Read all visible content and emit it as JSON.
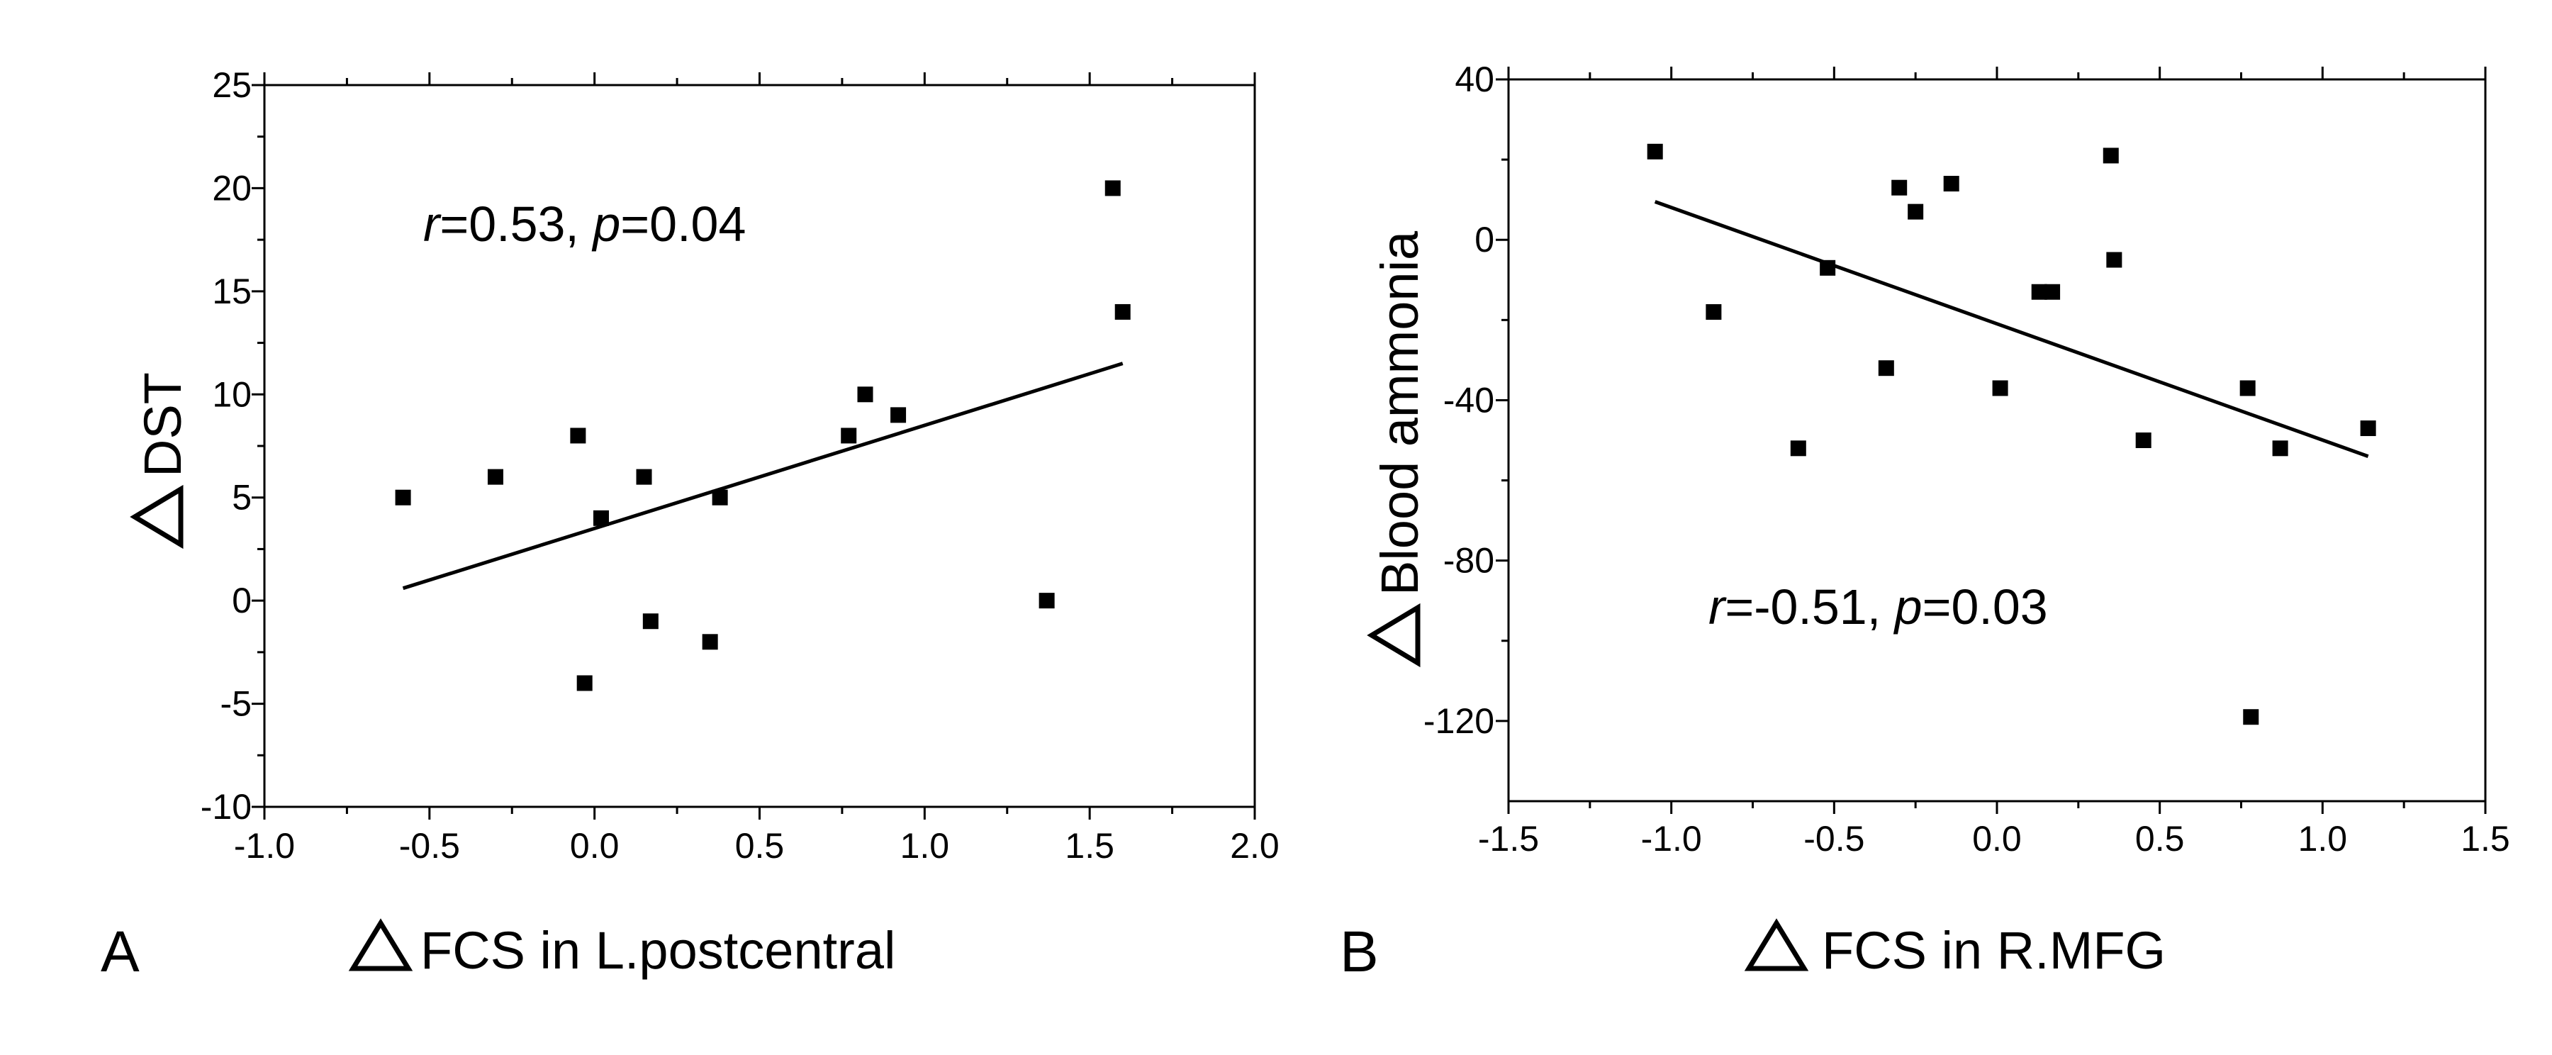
{
  "chart_data": [
    {
      "type": "scatter",
      "panel_label": "A",
      "xlabel": "FCS in L.postcentral",
      "ylabel": "DST",
      "xlim": [
        -1.0,
        2.0
      ],
      "ylim": [
        -10,
        25
      ],
      "xticks": [
        "-1.0",
        "-0.5",
        "0.0",
        "0.5",
        "1.0",
        "1.5",
        "2.0"
      ],
      "yticks": [
        "-10",
        "-5",
        "0",
        "5",
        "10",
        "15",
        "20",
        "25"
      ],
      "annotation": {
        "r_label": "r",
        "r_value": "=0.53, ",
        "p_label": "p",
        "p_value": "=0.04"
      },
      "points": [
        {
          "x": -0.58,
          "y": 5
        },
        {
          "x": -0.3,
          "y": 6
        },
        {
          "x": -0.05,
          "y": 8
        },
        {
          "x": -0.03,
          "y": -4
        },
        {
          "x": 0.02,
          "y": 4
        },
        {
          "x": 0.15,
          "y": 6
        },
        {
          "x": 0.17,
          "y": -1
        },
        {
          "x": 0.35,
          "y": -2
        },
        {
          "x": 0.38,
          "y": 5
        },
        {
          "x": 0.77,
          "y": 8
        },
        {
          "x": 0.82,
          "y": 10
        },
        {
          "x": 0.92,
          "y": 9
        },
        {
          "x": 1.37,
          "y": 0
        },
        {
          "x": 1.57,
          "y": 20
        },
        {
          "x": 1.6,
          "y": 14
        }
      ],
      "fit_line": [
        {
          "x": -0.58,
          "y": 0.6
        },
        {
          "x": 1.6,
          "y": 11.5
        }
      ]
    },
    {
      "type": "scatter",
      "panel_label": "B",
      "xlabel": "FCS in R.MFG",
      "ylabel": "Blood ammonia",
      "xlim": [
        -1.5,
        1.5
      ],
      "ylim": [
        -140,
        40
      ],
      "xticks": [
        "-1.5",
        "-1.0",
        "-0.5",
        "0.0",
        "0.5",
        "1.0",
        "1.5"
      ],
      "yticks": [
        "-120",
        "-80",
        "-40",
        "0",
        "40"
      ],
      "annotation": {
        "r_label": "r",
        "r_value": "=-0.51, ",
        "p_label": "p",
        "p_value": "=0.03"
      },
      "points": [
        {
          "x": -1.05,
          "y": 22
        },
        {
          "x": -0.87,
          "y": -18
        },
        {
          "x": -0.61,
          "y": -52
        },
        {
          "x": -0.52,
          "y": -7
        },
        {
          "x": -0.34,
          "y": -32
        },
        {
          "x": -0.3,
          "y": 13
        },
        {
          "x": -0.25,
          "y": 7
        },
        {
          "x": -0.14,
          "y": 14
        },
        {
          "x": 0.01,
          "y": -37
        },
        {
          "x": 0.13,
          "y": -13
        },
        {
          "x": 0.17,
          "y": -13
        },
        {
          "x": 0.35,
          "y": 21
        },
        {
          "x": 0.36,
          "y": -5
        },
        {
          "x": 0.45,
          "y": -50
        },
        {
          "x": 0.77,
          "y": -37
        },
        {
          "x": 0.78,
          "y": -119
        },
        {
          "x": 0.87,
          "y": -52
        },
        {
          "x": 1.14,
          "y": -47
        }
      ],
      "fit_line": [
        {
          "x": -1.05,
          "y": 9.5
        },
        {
          "x": 1.14,
          "y": -54
        }
      ]
    }
  ]
}
